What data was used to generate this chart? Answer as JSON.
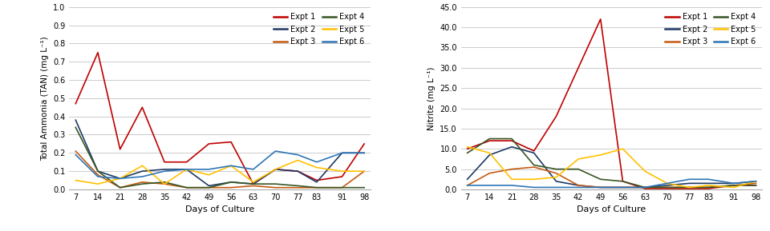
{
  "days": [
    7,
    14,
    21,
    28,
    35,
    42,
    49,
    56,
    63,
    70,
    77,
    83,
    91,
    98
  ],
  "tan": {
    "Expt 1": [
      0.47,
      0.75,
      0.22,
      0.45,
      0.15,
      0.15,
      0.25,
      0.26,
      0.03,
      0.11,
      0.1,
      0.05,
      0.07,
      0.25
    ],
    "Expt 2": [
      0.38,
      0.1,
      0.06,
      0.1,
      0.11,
      0.11,
      0.02,
      0.04,
      0.03,
      0.11,
      0.1,
      0.04,
      0.2,
      0.2
    ],
    "Expt 3": [
      0.21,
      0.08,
      0.01,
      0.04,
      0.03,
      0.01,
      0.01,
      0.01,
      0.02,
      0.01,
      0.01,
      0.01,
      0.01,
      0.1
    ],
    "Expt 4": [
      0.34,
      0.1,
      0.01,
      0.03,
      0.04,
      0.01,
      0.01,
      0.04,
      0.03,
      0.03,
      0.02,
      0.01,
      0.01,
      0.01
    ],
    "Expt 5": [
      0.05,
      0.03,
      0.06,
      0.13,
      0.03,
      0.11,
      0.08,
      0.13,
      0.04,
      0.11,
      0.16,
      0.12,
      0.1,
      0.1
    ],
    "Expt 6": [
      0.19,
      0.07,
      0.06,
      0.07,
      0.1,
      0.11,
      0.11,
      0.13,
      0.11,
      0.21,
      0.19,
      0.15,
      0.2,
      0.2
    ]
  },
  "nitrite": {
    "Expt 1": [
      10.0,
      12.0,
      12.0,
      9.5,
      18.0,
      null,
      42.0,
      2.0,
      0.2,
      0.2,
      0.2,
      0.2,
      1.0,
      1.0
    ],
    "Expt 2": [
      2.5,
      8.5,
      10.5,
      9.0,
      2.0,
      1.0,
      0.5,
      0.5,
      0.5,
      1.0,
      1.5,
      1.5,
      1.5,
      2.0
    ],
    "Expt 3": [
      1.0,
      4.0,
      5.0,
      5.5,
      4.0,
      1.0,
      0.5,
      0.5,
      0.5,
      0.5,
      0.5,
      0.5,
      1.0,
      1.5
    ],
    "Expt 4": [
      9.0,
      12.5,
      12.5,
      6.0,
      5.0,
      5.0,
      2.5,
      2.0,
      0.5,
      0.5,
      0.5,
      0.5,
      1.0,
      1.0
    ],
    "Expt 5": [
      10.5,
      9.0,
      2.5,
      2.5,
      3.0,
      7.5,
      8.5,
      10.0,
      4.5,
      1.5,
      0.5,
      1.0,
      0.5,
      2.0
    ],
    "Expt 6": [
      1.0,
      1.0,
      1.0,
      0.5,
      0.5,
      0.5,
      0.5,
      0.5,
      0.5,
      1.5,
      2.5,
      2.5,
      1.5,
      2.0
    ]
  },
  "colors": {
    "Expt 1": "#C00000",
    "Expt 2": "#1F3864",
    "Expt 3": "#C55A11",
    "Expt 4": "#375623",
    "Expt 5": "#FFC000",
    "Expt 6": "#2E75B6"
  },
  "tan_ylim": [
    0.0,
    1.0
  ],
  "tan_yticks": [
    0.0,
    0.1,
    0.2,
    0.3,
    0.4,
    0.5,
    0.6,
    0.7,
    0.8,
    0.9,
    1.0
  ],
  "nitrite_ylim": [
    0.0,
    45.0
  ],
  "nitrite_yticks": [
    0.0,
    5.0,
    10.0,
    15.0,
    20.0,
    25.0,
    30.0,
    35.0,
    40.0,
    45.0
  ],
  "xlabel": "Days of Culture",
  "tan_ylabel": "Total Ammonia (TAN) (mg L⁻¹)",
  "nitrite_ylabel": "Nitrite (mg L⁻¹)",
  "legend_col1": [
    "Expt 1",
    "Expt 3",
    "Expt 5"
  ],
  "legend_col2": [
    "Expt 2",
    "Expt 4",
    "Expt 6"
  ],
  "legend_order": [
    "Expt 1",
    "Expt 2",
    "Expt 3",
    "Expt 4",
    "Expt 5",
    "Expt 6"
  ]
}
